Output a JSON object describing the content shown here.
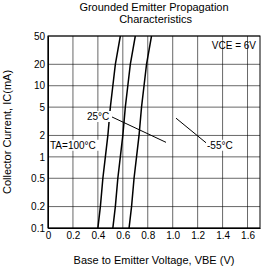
{
  "chart_data": {
    "type": "line",
    "title": "Grounded Emitter Propagation Characteristics",
    "x_label": "Base to Emitter Voltage, VBE (V)",
    "y_label": "Collector Current, IC(mA)",
    "log": "y",
    "grid": true,
    "color": "#000000",
    "xlim": [
      0,
      1.7
    ],
    "xticks": [
      0,
      0.2,
      0.4,
      0.6,
      0.8,
      {
        "value": 1,
        "label": "1.0"
      },
      1.2,
      1.4,
      1.6
    ],
    "ylim": [
      0.1,
      50
    ],
    "yticks": [
      0.1,
      0.2,
      0.5,
      1,
      2,
      5,
      10,
      20,
      50
    ],
    "series": [
      {
        "name": "TA=100°C",
        "color": "#000000",
        "x": [
          0.4,
          0.42,
          0.44,
          0.46,
          0.48,
          0.5,
          0.52,
          0.54,
          0.58
        ],
        "values": [
          0.1,
          0.2,
          0.5,
          1,
          2,
          5,
          10,
          20,
          50
        ]
      },
      {
        "name": "25°C",
        "color": "#000000",
        "x": [
          0.52,
          0.54,
          0.56,
          0.58,
          0.6,
          0.62,
          0.64,
          0.66,
          0.7
        ],
        "values": [
          0.1,
          0.2,
          0.5,
          1,
          2,
          5,
          10,
          20,
          50
        ]
      },
      {
        "name": "-55°C",
        "color": "#000000",
        "x": [
          0.65,
          0.67,
          0.69,
          0.71,
          0.73,
          0.75,
          0.77,
          0.79,
          0.83
        ],
        "values": [
          0.1,
          0.2,
          0.5,
          1,
          2,
          5,
          10,
          20,
          50
        ]
      }
    ],
    "annotations": [
      {
        "text": "VCE = 6V"
      }
    ]
  }
}
